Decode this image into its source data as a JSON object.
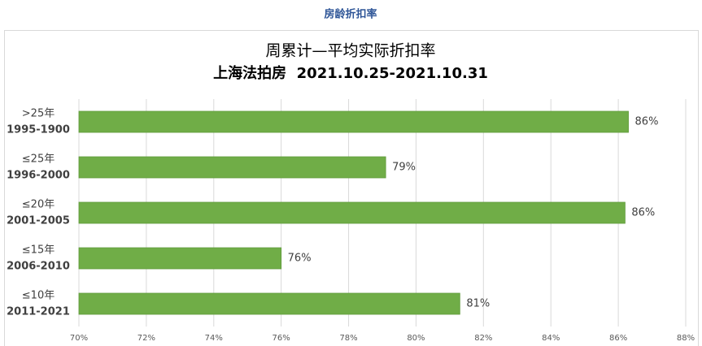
{
  "header": {
    "title": "房龄折扣率"
  },
  "chart_data": {
    "type": "bar",
    "orientation": "horizontal",
    "title": "周累计—平均实际折扣率",
    "subtitle": "上海法拍房  2021.10.25-2021.10.31",
    "categories": [
      [
        ">25年",
        "1995-1900"
      ],
      [
        "≤25年",
        "1996-2000"
      ],
      [
        "≤20年",
        "2001-2005"
      ],
      [
        "≤15年",
        "2006-2010"
      ],
      [
        "≤10年",
        "2011-2021"
      ]
    ],
    "values": [
      86.3,
      79.1,
      86.2,
      76.0,
      81.3
    ],
    "value_labels": [
      "86%",
      "79%",
      "86%",
      "76%",
      "81%"
    ],
    "color": "#70ad47",
    "xlim": [
      70,
      88
    ],
    "xticks": [
      {
        "value": 70,
        "label": "70%"
      },
      {
        "value": 72,
        "label": "72%"
      },
      {
        "value": 74,
        "label": "74%"
      },
      {
        "value": 76,
        "label": "76%"
      },
      {
        "value": 78,
        "label": "78%"
      },
      {
        "value": 80,
        "label": "80%"
      },
      {
        "value": 82,
        "label": "82%"
      },
      {
        "value": 84,
        "label": "84%"
      },
      {
        "value": 86,
        "label": "86%"
      },
      {
        "value": 88,
        "label": "88%"
      }
    ],
    "grid": true
  }
}
